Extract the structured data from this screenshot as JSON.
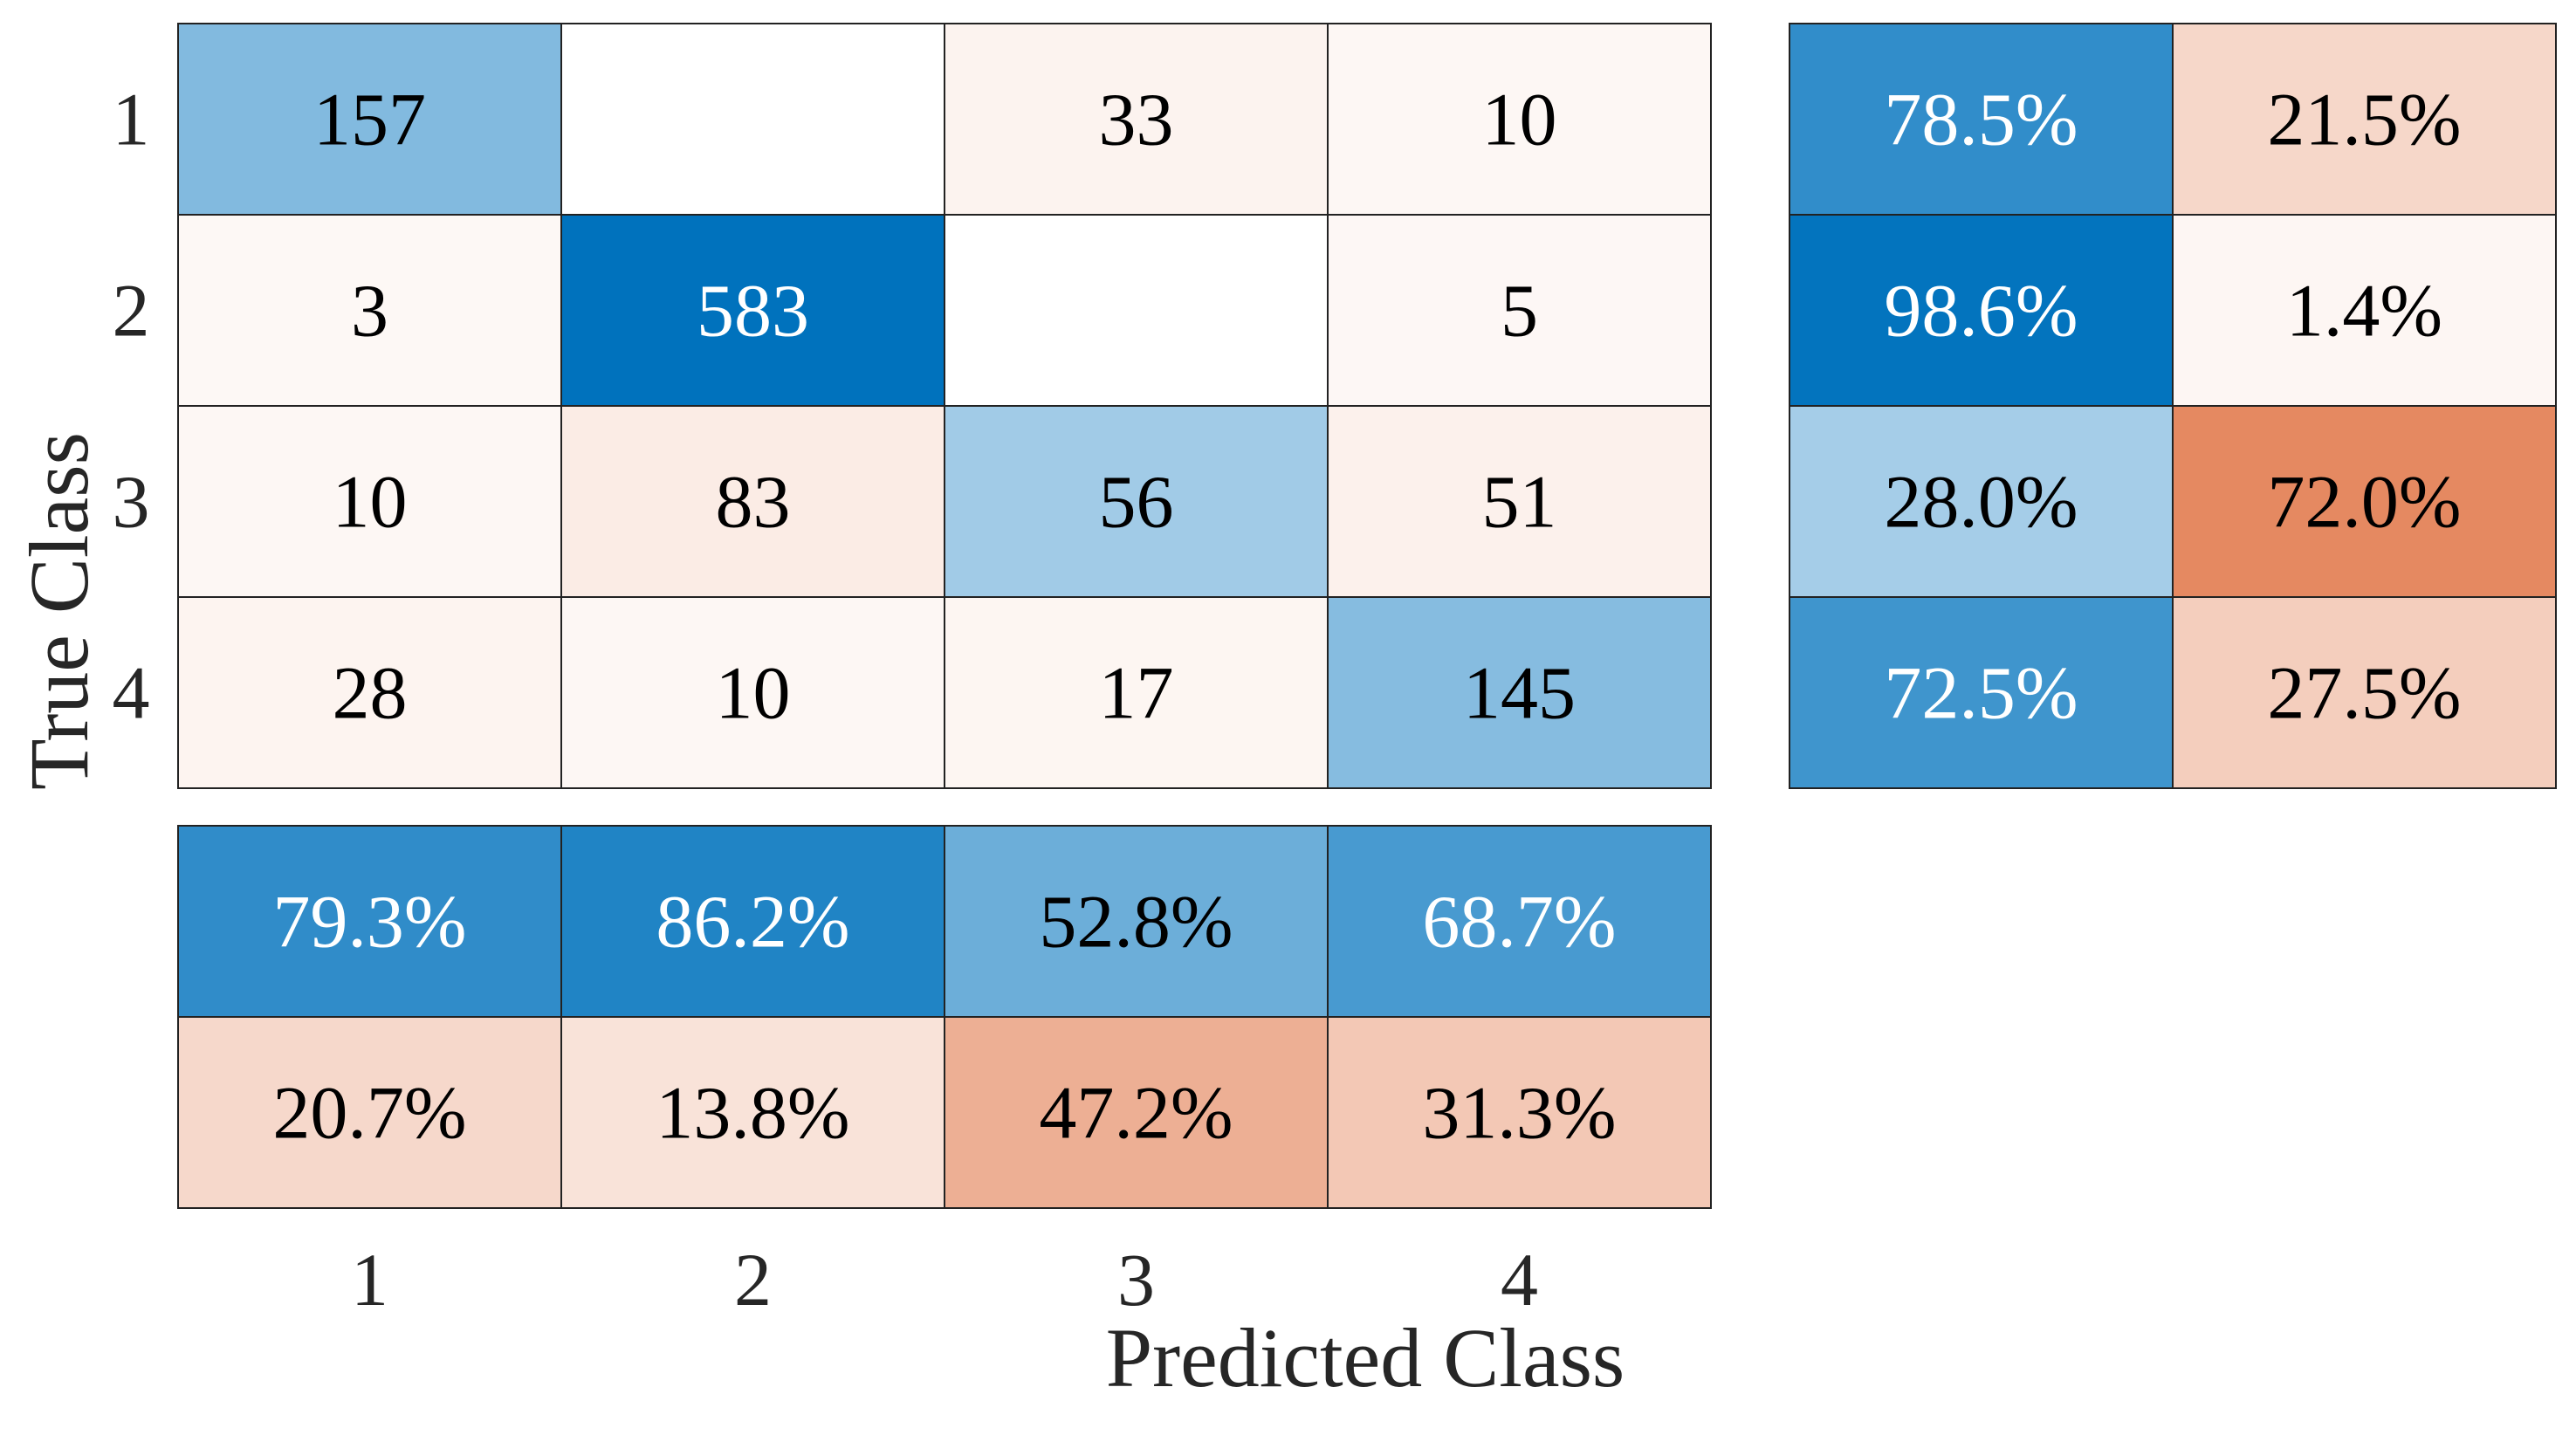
{
  "chart_data": {
    "type": "heatmap",
    "subtype": "confusion_matrix",
    "xlabel": "Predicted Class",
    "ylabel": "True Class",
    "classes": [
      "1",
      "2",
      "3",
      "4"
    ],
    "matrix": [
      [
        157,
        0,
        33,
        10
      ],
      [
        3,
        583,
        0,
        5
      ],
      [
        10,
        83,
        56,
        51
      ],
      [
        28,
        10,
        17,
        145
      ]
    ],
    "row_summary": {
      "correct": [
        "78.5%",
        "98.6%",
        "28.0%",
        "72.5%"
      ],
      "incorrect": [
        "21.5%",
        "1.4%",
        "72.0%",
        "27.5%"
      ]
    },
    "column_summary": {
      "correct": [
        "79.3%",
        "86.2%",
        "52.8%",
        "68.7%"
      ],
      "incorrect": [
        "20.7%",
        "13.8%",
        "47.2%",
        "31.3%"
      ]
    },
    "colors": {
      "correct": "#0072bd",
      "incorrect": "#d95319",
      "border": "#222222",
      "text_dark": "#000000",
      "text_light": "#ffffff"
    }
  }
}
